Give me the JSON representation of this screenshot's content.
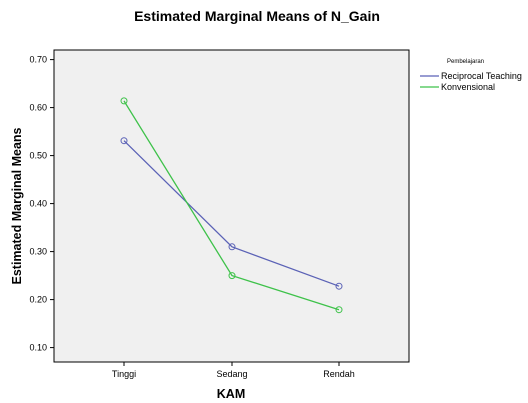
{
  "chart_data": {
    "type": "line",
    "title": "Estimated Marginal Means of N_Gain",
    "xlabel": "KAM",
    "ylabel": "Estimated Marginal Means",
    "categories": [
      "Tinggi",
      "Sedang",
      "Rendah"
    ],
    "ylim": [
      0.07,
      0.72
    ],
    "yticks": [
      "0.10",
      "0.20",
      "0.30",
      "0.40",
      "0.50",
      "0.60",
      "0.70"
    ],
    "grid": false,
    "legend_title": "Pembelajaran",
    "legend_position": "top-right",
    "series": [
      {
        "name": "Reciprocal Teaching",
        "color": "#5b62b6",
        "values": [
          0.531,
          0.31,
          0.228
        ]
      },
      {
        "name": "Konvensional",
        "color": "#3ec24a",
        "values": [
          0.614,
          0.25,
          0.179
        ]
      }
    ]
  }
}
